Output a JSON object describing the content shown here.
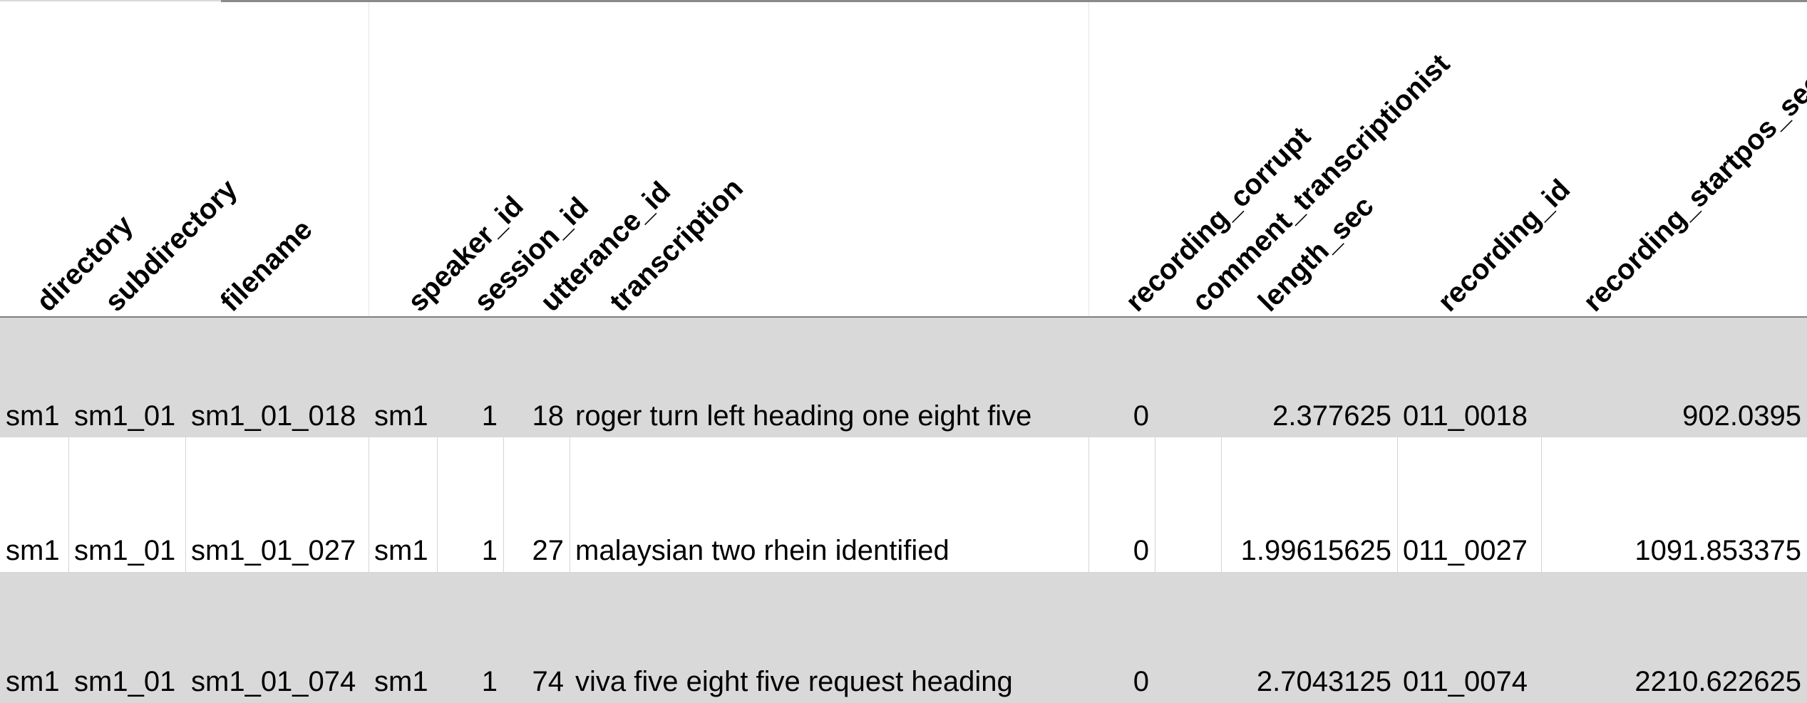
{
  "headers": [
    "directory",
    "subdirectory",
    "filename",
    "speaker_id",
    "session_id",
    "utterance_id",
    "transcription",
    "recording_corrupt",
    "comment_transcriptionist",
    "length_sec",
    "recording_id",
    "recording_startpos_sec"
  ],
  "rows": [
    {
      "directory": "sm1",
      "subdirectory": "sm1_01",
      "filename": "sm1_01_018",
      "speaker_id": "sm1",
      "session_id": "1",
      "utterance_id": "18",
      "transcription": "roger turn left heading one eight five",
      "recording_corrupt": "0",
      "comment_transcriptionist": "",
      "length_sec": "2.377625",
      "recording_id": "011_0018",
      "recording_startpos_sec": "902.0395"
    },
    {
      "directory": "sm1",
      "subdirectory": "sm1_01",
      "filename": "sm1_01_027",
      "speaker_id": "sm1",
      "session_id": "1",
      "utterance_id": "27",
      "transcription": "malaysian two rhein identified",
      "recording_corrupt": "0",
      "comment_transcriptionist": "",
      "length_sec": "1.99615625",
      "recording_id": "011_0027",
      "recording_startpos_sec": "1091.853375"
    },
    {
      "directory": "sm1",
      "subdirectory": "sm1_01",
      "filename": "sm1_01_074",
      "speaker_id": "sm1",
      "session_id": "1",
      "utterance_id": "74",
      "transcription": "viva five eight five request heading",
      "recording_corrupt": "0",
      "comment_transcriptionist": "",
      "length_sec": "2.7043125",
      "recording_id": "011_0074",
      "recording_startpos_sec": "2210.622625"
    }
  ]
}
